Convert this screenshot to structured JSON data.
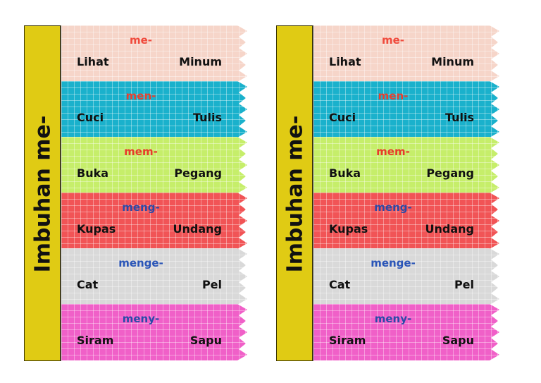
{
  "title": "Imbuhan me-",
  "strips": [
    {
      "prefix": "me-",
      "prefix_color": "#f04a3c",
      "bg": "#f6d5c9",
      "words": [
        "Lihat",
        "Minum"
      ]
    },
    {
      "prefix": "men-",
      "prefix_color": "#e8402e",
      "bg": "#1ab1cc",
      "words": [
        "Cuci",
        "Tulis"
      ]
    },
    {
      "prefix": "mem-",
      "prefix_color": "#e83a2a",
      "bg": "#c6ee6a",
      "words": [
        "Buka",
        "Pegang"
      ]
    },
    {
      "prefix": "meng-",
      "prefix_color": "#2a4aa8",
      "bg": "#f15456",
      "words": [
        "Kupas",
        "Undang"
      ]
    },
    {
      "prefix": "menge-",
      "prefix_color": "#2a55b8",
      "bg": "#d9d9d9",
      "words": [
        "Cat",
        "Pel"
      ]
    },
    {
      "prefix": "meny-",
      "prefix_color": "#2a4aa8",
      "bg": "#f060c8",
      "words": [
        "Siram",
        "Sapu"
      ]
    }
  ]
}
